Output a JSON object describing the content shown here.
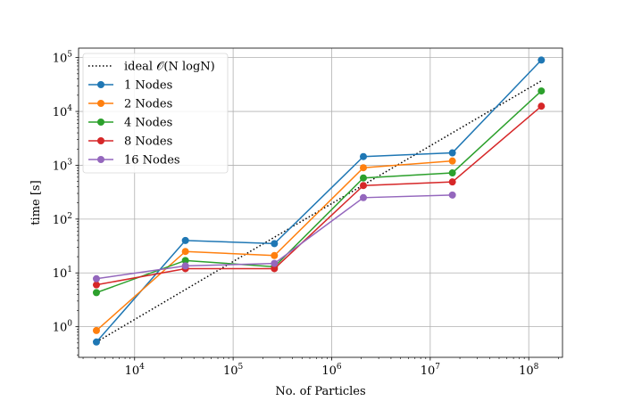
{
  "chart_data": {
    "type": "line",
    "title": "",
    "xlabel": "No. of Particles",
    "ylabel": "time [s]",
    "xscale": "log",
    "yscale": "log",
    "xlim": [
      2700,
      220000000
    ],
    "ylim": [
      0.27,
      150000
    ],
    "grid": true,
    "legend_position": "upper left",
    "x_ticks": [
      {
        "value": 10000,
        "base": "10",
        "exp": "4"
      },
      {
        "value": 100000,
        "base": "10",
        "exp": "5"
      },
      {
        "value": 1000000,
        "base": "10",
        "exp": "6"
      },
      {
        "value": 10000000,
        "base": "10",
        "exp": "7"
      },
      {
        "value": 100000000,
        "base": "10",
        "exp": "8"
      }
    ],
    "y_ticks": [
      {
        "value": 1,
        "base": "10",
        "exp": "0"
      },
      {
        "value": 10,
        "base": "10",
        "exp": "1"
      },
      {
        "value": 100,
        "base": "10",
        "exp": "2"
      },
      {
        "value": 1000,
        "base": "10",
        "exp": "3"
      },
      {
        "value": 10000,
        "base": "10",
        "exp": "4"
      },
      {
        "value": 100000,
        "base": "10",
        "exp": "5"
      }
    ],
    "x": [
      4096,
      32768,
      262144,
      2097152,
      16777216,
      134217728
    ],
    "series": [
      {
        "name": "ideal 𝒪(N logN)",
        "style": "dotted",
        "color": "#000000",
        "marker": false,
        "values": [
          0.52,
          4.9,
          46,
          430,
          4000,
          37000
        ]
      },
      {
        "name": "1 Nodes",
        "style": "solid",
        "color": "#1f77b4",
        "marker": true,
        "values": [
          0.52,
          40,
          35,
          1450,
          1700,
          90000
        ]
      },
      {
        "name": "2 Nodes",
        "style": "solid",
        "color": "#ff7f0e",
        "marker": true,
        "values": [
          0.85,
          25,
          21,
          900,
          1200,
          null
        ]
      },
      {
        "name": "4 Nodes",
        "style": "solid",
        "color": "#2ca02c",
        "marker": true,
        "values": [
          4.3,
          17,
          13,
          580,
          720,
          24000
        ]
      },
      {
        "name": "8 Nodes",
        "style": "solid",
        "color": "#d62728",
        "marker": true,
        "values": [
          6,
          12,
          12,
          420,
          490,
          12500
        ]
      },
      {
        "name": "16 Nodes",
        "style": "solid",
        "color": "#9467bd",
        "marker": true,
        "values": [
          7.8,
          13.5,
          15,
          250,
          280,
          null
        ]
      }
    ]
  }
}
